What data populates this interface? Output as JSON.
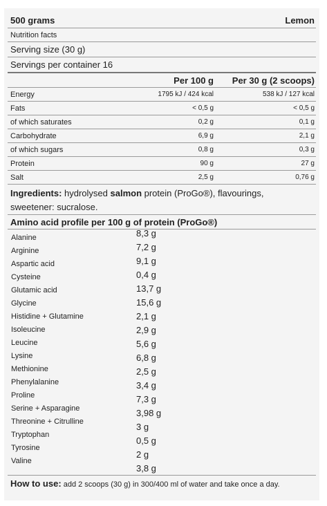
{
  "header": {
    "weight": "500 grams",
    "flavour": "Lemon"
  },
  "nutrition_facts_label": "Nutrition facts",
  "serving_size": "Serving size (30 g)",
  "servings_per_container": "Servings per container 16",
  "columns": {
    "per100": "Per 100 g",
    "per30": "Per 30 g (2 scoops)"
  },
  "nutrients": [
    {
      "name": "Energy",
      "per100": "1795 kJ / 424 kcal",
      "per30": "538 kJ / 127 kcal"
    },
    {
      "name": "Fats",
      "per100": "< 0,5 g",
      "per30": "< 0,5 g"
    },
    {
      "name": "of which saturates",
      "per100": "0,2 g",
      "per30": "0,1 g"
    },
    {
      "name": "Carbohydrate",
      "per100": "6,9 g",
      "per30": "2,1 g"
    },
    {
      "name": "of which sugars",
      "per100": "0,8 g",
      "per30": "0,3 g"
    },
    {
      "name": "Protein",
      "per100": "90 g",
      "per30": "27 g"
    },
    {
      "name": "Salt",
      "per100": "2,5 g",
      "per30": "0,76 g"
    }
  ],
  "ingredients": {
    "label": "Ingredients:",
    "text_a": " hydrolysed ",
    "text_b": "salmon",
    "text_c": " protein (ProGo®), flavourings,",
    "line2": "sweetener: sucralose."
  },
  "amino": {
    "title": "Amino acid profile per 100 g of protein (ProGo®)",
    "names": [
      "Alanine",
      "Arginine",
      "Aspartic acid",
      "Cysteine",
      "Glutamic acid",
      "Glycine",
      "Histidine + Glutamine",
      "Isoleucine",
      "Leucine",
      "Lysine",
      "Methionine",
      "Phenylalanine",
      "Proline",
      "Serine + Asparagine",
      "Threonine + Citrulline",
      "Tryptophan",
      "Tyrosine",
      "Valine"
    ],
    "values": [
      "8,3 g",
      "7,2 g",
      "9,1 g",
      "0,4 g",
      "13,7 g",
      "15,6 g",
      "2,1 g",
      "2,9 g",
      "5,6 g",
      "6,8 g",
      "2,5 g",
      "3,4 g",
      "7,3 g",
      "3,98 g",
      "3 g",
      "0,5 g",
      "2 g",
      "3,8 g"
    ]
  },
  "how_to_use": {
    "label": "How to use:",
    "text": " add 2 scoops (30 g) in 300/400 ml of water and take once a day."
  }
}
